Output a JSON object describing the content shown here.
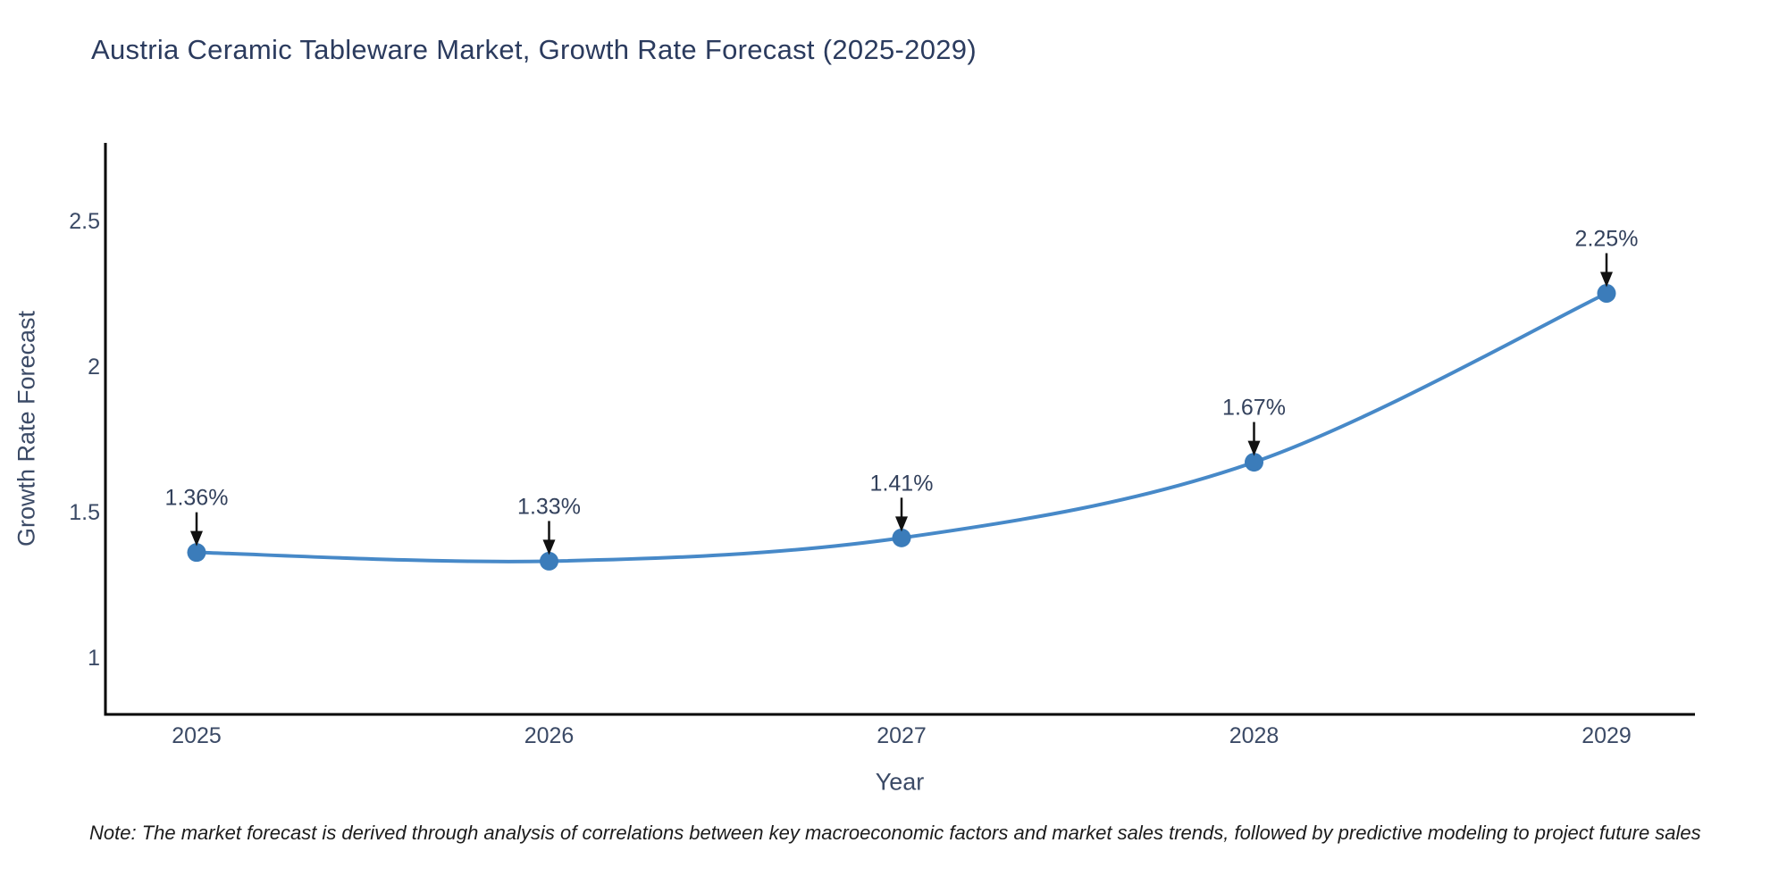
{
  "title": "Austria Ceramic Tableware Market, Growth Rate Forecast (2025-2029)",
  "note": "Note: The market forecast is derived through analysis of correlations between key macroeconomic factors and market sales trends, followed by predictive modeling to project future sales",
  "chart_data": {
    "type": "line",
    "title": "Austria Ceramic Tableware Market, Growth Rate Forecast (2025-2029)",
    "xlabel": "Year",
    "ylabel": "Growth Rate Forecast",
    "x": [
      2025,
      2026,
      2027,
      2028,
      2029
    ],
    "values": [
      1.36,
      1.33,
      1.41,
      1.67,
      2.25
    ],
    "point_labels": [
      "1.36%",
      "1.33%",
      "1.41%",
      "1.67%",
      "2.25%"
    ],
    "yticks": [
      1,
      1.5,
      2,
      2.5
    ],
    "ytick_labels": [
      "1",
      "1.5",
      "2",
      "2.5"
    ],
    "xtick_labels": [
      "2025",
      "2026",
      "2027",
      "2028",
      "2029"
    ],
    "xlim": [
      2024.74,
      2029.25
    ],
    "ylim": [
      0.8,
      2.77
    ],
    "grid": false,
    "legend": false,
    "line_smooth": true,
    "annotations_arrow": "down",
    "colors": {
      "line": "#4789c8",
      "marker": "#3b7cba",
      "arrow": "#111111",
      "axis": "#000000",
      "tick_text": "#3b4a66",
      "annotation_text": "#33415c",
      "title_text": "#2b3b5e",
      "note_text": "#1c1c1c"
    }
  }
}
